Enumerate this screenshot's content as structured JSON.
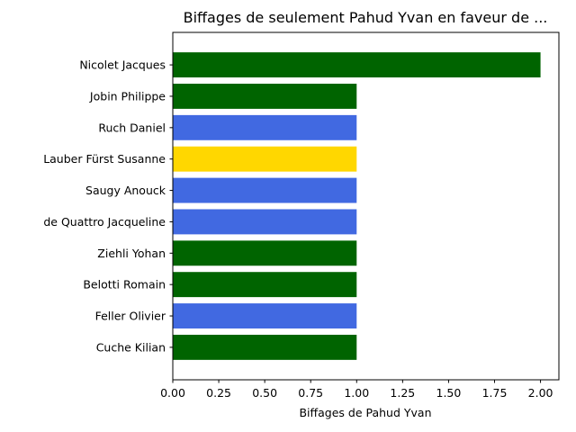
{
  "chart_data": {
    "type": "bar",
    "orientation": "horizontal",
    "title": "Biffages de seulement Pahud Yvan en faveur de ...",
    "xlabel": "Biffages de Pahud Yvan",
    "ylabel": "",
    "xlim": [
      0,
      2.1
    ],
    "xticks": [
      "0.00",
      "0.25",
      "0.50",
      "0.75",
      "1.00",
      "1.25",
      "1.50",
      "1.75",
      "2.00"
    ],
    "grid": false,
    "categories": [
      "Nicolet Jacques",
      "Jobin Philippe",
      "Ruch Daniel",
      "Lauber Fürst Susanne",
      "Saugy Anouck",
      "de Quattro Jacqueline",
      "Ziehli Yohan",
      "Belotti Romain",
      "Feller Olivier",
      "Cuche Kilian"
    ],
    "values": [
      2,
      1,
      1,
      1,
      1,
      1,
      1,
      1,
      1,
      1
    ],
    "colors": [
      "#006400",
      "#006400",
      "#4169E1",
      "#FFD700",
      "#4169E1",
      "#4169E1",
      "#006400",
      "#006400",
      "#4169E1",
      "#006400"
    ]
  }
}
